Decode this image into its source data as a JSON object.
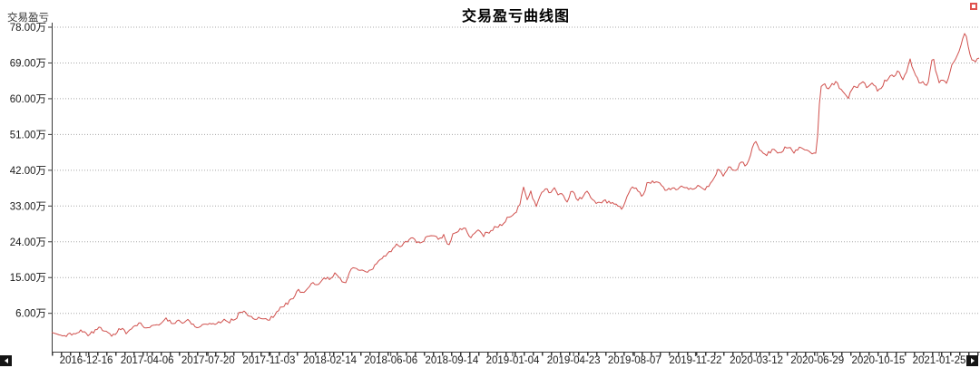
{
  "header": {
    "title": "交易盈亏曲线图"
  },
  "chart_data": {
    "type": "line",
    "title": "交易盈亏曲线图",
    "y_axis_title": "交易盈亏",
    "series_name": "交易盈亏",
    "y_unit": "万",
    "ylim": [
      0,
      80
    ],
    "grid": {
      "horizontal": true,
      "style": "dotted",
      "color": "#a8a8a8"
    },
    "legend_position": "top-right",
    "y_ticks": [
      {
        "value": 78,
        "label": "78.00万"
      },
      {
        "value": 69,
        "label": "69.00万"
      },
      {
        "value": 60,
        "label": "60.00万"
      },
      {
        "value": 51,
        "label": "51.00万"
      },
      {
        "value": 42,
        "label": "42.00万"
      },
      {
        "value": 33,
        "label": "33.00万"
      },
      {
        "value": 24,
        "label": "24.00万"
      },
      {
        "value": 15,
        "label": "15.00万"
      },
      {
        "value": 6,
        "label": "6.00万"
      }
    ],
    "x_ticks": [
      "2016-12-16",
      "2017-04-06",
      "2017-07-20",
      "2017-11-03",
      "2018-02-14",
      "2018-06-06",
      "2018-09-14",
      "2019-01-04",
      "2019-04-23",
      "2019-08-07",
      "2019-11-22",
      "2020-03-12",
      "2020-06-29",
      "2020-10-15",
      "2021-01-25"
    ],
    "points_format": "[fraction_of_time_axis, profit_in_10k_CNY]",
    "points": [
      [
        0,
        0.9
      ],
      [
        0.013,
        0.5
      ],
      [
        0.027,
        1.4
      ],
      [
        0.037,
        0.8
      ],
      [
        0.045,
        1.5
      ],
      [
        0.052,
        1.9
      ],
      [
        0.06,
        1.1
      ],
      [
        0.066,
        0.9
      ],
      [
        0.074,
        1.7
      ],
      [
        0.081,
        1.5
      ],
      [
        0.091,
        3.3
      ],
      [
        0.099,
        2.4
      ],
      [
        0.107,
        2.1
      ],
      [
        0.112,
        2.8
      ],
      [
        0.118,
        3.8
      ],
      [
        0.124,
        4.3
      ],
      [
        0.13,
        3.7
      ],
      [
        0.136,
        4.5
      ],
      [
        0.142,
        4.0
      ],
      [
        0.148,
        4.6
      ],
      [
        0.153,
        3.3
      ],
      [
        0.159,
        3.0
      ],
      [
        0.164,
        3.8
      ],
      [
        0.168,
        3.3
      ],
      [
        0.176,
        3.0
      ],
      [
        0.184,
        4.0
      ],
      [
        0.191,
        3.4
      ],
      [
        0.196,
        4.4
      ],
      [
        0.203,
        5.8
      ],
      [
        0.209,
        6.5
      ],
      [
        0.215,
        5.0
      ],
      [
        0.222,
        4.4
      ],
      [
        0.228,
        4.8
      ],
      [
        0.234,
        5.2
      ],
      [
        0.24,
        5.8
      ],
      [
        0.247,
        6.9
      ],
      [
        0.253,
        8.5
      ],
      [
        0.259,
        9.8
      ],
      [
        0.265,
        11.5
      ],
      [
        0.271,
        11.0
      ],
      [
        0.277,
        12.6
      ],
      [
        0.282,
        14.0
      ],
      [
        0.286,
        13.0
      ],
      [
        0.292,
        14.6
      ],
      [
        0.299,
        14.9
      ],
      [
        0.306,
        16.4
      ],
      [
        0.311,
        14.8
      ],
      [
        0.316,
        14.2
      ],
      [
        0.322,
        16.5
      ],
      [
        0.327,
        17.5
      ],
      [
        0.333,
        16.2
      ],
      [
        0.34,
        16.0
      ],
      [
        0.347,
        17.5
      ],
      [
        0.353,
        19.0
      ],
      [
        0.359,
        20.5
      ],
      [
        0.365,
        21.5
      ],
      [
        0.371,
        23.0
      ],
      [
        0.376,
        22.0
      ],
      [
        0.382,
        23.8
      ],
      [
        0.389,
        24.4
      ],
      [
        0.396,
        23.2
      ],
      [
        0.404,
        24.8
      ],
      [
        0.412,
        25.8
      ],
      [
        0.417,
        24.6
      ],
      [
        0.423,
        25.5
      ],
      [
        0.427,
        22.8
      ],
      [
        0.432,
        25.5
      ],
      [
        0.435,
        26.0
      ],
      [
        0.445,
        26.8
      ],
      [
        0.453,
        25.2
      ],
      [
        0.459,
        26.5
      ],
      [
        0.464,
        25.6
      ],
      [
        0.472,
        27.2
      ],
      [
        0.48,
        28.0
      ],
      [
        0.488,
        29.0
      ],
      [
        0.494,
        30.4
      ],
      [
        0.5,
        31.5
      ],
      [
        0.504,
        33.5
      ],
      [
        0.508,
        38.3
      ],
      [
        0.512,
        35.1
      ],
      [
        0.516,
        37.4
      ],
      [
        0.519,
        34.5
      ],
      [
        0.522,
        33.0
      ],
      [
        0.527,
        35.5
      ],
      [
        0.531,
        37.0
      ],
      [
        0.536,
        36.0
      ],
      [
        0.541,
        37.3
      ],
      [
        0.546,
        35.2
      ],
      [
        0.55,
        36.5
      ],
      [
        0.555,
        34.2
      ],
      [
        0.56,
        36.8
      ],
      [
        0.566,
        35.2
      ],
      [
        0.57,
        35.4
      ],
      [
        0.576,
        36.8
      ],
      [
        0.582,
        34.5
      ],
      [
        0.587,
        33.9
      ],
      [
        0.591,
        33.7
      ],
      [
        0.601,
        34.3
      ],
      [
        0.609,
        33.1
      ],
      [
        0.614,
        32.6
      ],
      [
        0.621,
        36.2
      ],
      [
        0.626,
        38.1
      ],
      [
        0.631,
        37.5
      ],
      [
        0.636,
        35.4
      ],
      [
        0.641,
        38.1
      ],
      [
        0.646,
        39.2
      ],
      [
        0.654,
        38.8
      ],
      [
        0.661,
        36.9
      ],
      [
        0.668,
        38.0
      ],
      [
        0.675,
        37.2
      ],
      [
        0.682,
        38.4
      ],
      [
        0.689,
        37.2
      ],
      [
        0.697,
        37.9
      ],
      [
        0.703,
        36.8
      ],
      [
        0.711,
        39.5
      ],
      [
        0.718,
        41.8
      ],
      [
        0.724,
        40.2
      ],
      [
        0.73,
        42.5
      ],
      [
        0.736,
        41.2
      ],
      [
        0.742,
        43.8
      ],
      [
        0.748,
        43.2
      ],
      [
        0.751,
        45.5
      ],
      [
        0.756,
        49.0
      ],
      [
        0.759,
        50.0
      ],
      [
        0.763,
        47.5
      ],
      [
        0.77,
        46.0
      ],
      [
        0.777,
        47.5
      ],
      [
        0.785,
        46.5
      ],
      [
        0.793,
        47.8
      ],
      [
        0.8,
        46.5
      ],
      [
        0.806,
        48.0
      ],
      [
        0.814,
        46.7
      ],
      [
        0.821,
        46.3
      ],
      [
        0.824,
        46.8
      ],
      [
        0.826,
        54.0
      ],
      [
        0.827,
        58.5
      ],
      [
        0.828,
        62.5
      ],
      [
        0.832,
        63.5
      ],
      [
        0.836,
        62.0
      ],
      [
        0.84,
        63.2
      ],
      [
        0.846,
        64.0
      ],
      [
        0.851,
        61.8
      ],
      [
        0.858,
        60.0
      ],
      [
        0.863,
        62.5
      ],
      [
        0.869,
        63.5
      ],
      [
        0.873,
        64.0
      ],
      [
        0.878,
        63.0
      ],
      [
        0.883,
        64.8
      ],
      [
        0.89,
        62.0
      ],
      [
        0.897,
        64.5
      ],
      [
        0.902,
        65.5
      ],
      [
        0.907,
        65.2
      ],
      [
        0.912,
        66.8
      ],
      [
        0.917,
        64.4
      ],
      [
        0.922,
        68.0
      ],
      [
        0.924,
        70.5
      ],
      [
        0.928,
        67.5
      ],
      [
        0.931,
        65.6
      ],
      [
        0.935,
        64.1
      ],
      [
        0.939,
        64.4
      ],
      [
        0.943,
        63.3
      ],
      [
        0.947,
        68.2
      ],
      [
        0.949,
        71.0
      ],
      [
        0.952,
        67.5
      ],
      [
        0.956,
        64.4
      ],
      [
        0.959,
        65.6
      ],
      [
        0.963,
        64.1
      ],
      [
        0.967,
        66.3
      ],
      [
        0.971,
        69.0
      ],
      [
        0.975,
        70.5
      ],
      [
        0.977,
        71.7
      ],
      [
        0.98,
        74.3
      ],
      [
        0.983,
        76.5
      ],
      [
        0.985,
        75.8
      ],
      [
        0.988,
        72.0
      ],
      [
        0.991,
        70.1
      ],
      [
        0.994,
        69.8
      ],
      [
        0.998,
        70.1
      ],
      [
        1,
        69.8
      ]
    ],
    "line_color": "#d0504d"
  },
  "colors": {
    "line": "#d0504d",
    "grid": "#a8a8a8",
    "axis": "#3a3a3a",
    "text": "#1a1a1a",
    "legend_marker": "#e0524e",
    "scroll_button_bg": "#151515"
  },
  "controls": {
    "scroll_left_icon": "left-arrow",
    "scroll_right_icon": "right-arrow"
  }
}
